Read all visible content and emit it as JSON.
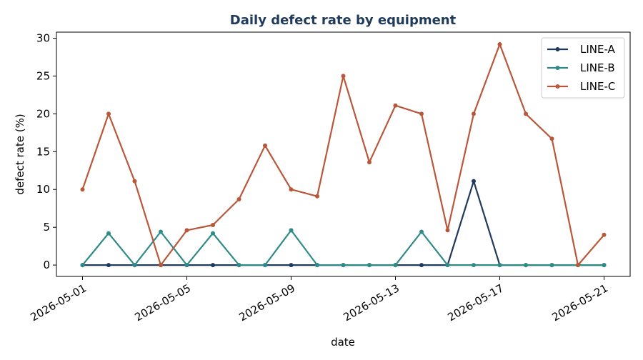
{
  "chart_data": {
    "type": "line",
    "title": "Daily defect rate by equipment",
    "xlabel": "date",
    "ylabel": "defect rate (%)",
    "ylim": [
      -1.5,
      30.8
    ],
    "yticks": [
      0,
      5,
      10,
      15,
      20,
      25,
      30
    ],
    "xlim": [
      "2026-04-30",
      "2026-05-22"
    ],
    "xticks": [
      "2026-05-01",
      "2026-05-05",
      "2026-05-09",
      "2026-05-13",
      "2026-05-17",
      "2026-05-21"
    ],
    "grid": false,
    "legend_position": "top-right",
    "x": [
      "2026-05-01",
      "2026-05-02",
      "2026-05-03",
      "2026-05-04",
      "2026-05-05",
      "2026-05-06",
      "2026-05-07",
      "2026-05-08",
      "2026-05-09",
      "2026-05-10",
      "2026-05-11",
      "2026-05-12",
      "2026-05-13",
      "2026-05-14",
      "2026-05-15",
      "2026-05-16",
      "2026-05-17",
      "2026-05-18",
      "2026-05-19",
      "2026-05-20",
      "2026-05-21"
    ],
    "series": [
      {
        "name": "LINE-A",
        "color": "#1f3a5a",
        "values": [
          0,
          0,
          0,
          0,
          0,
          0,
          0,
          0,
          0,
          0,
          0,
          0,
          0,
          0,
          0,
          11.1,
          0,
          0,
          0,
          0,
          0
        ]
      },
      {
        "name": "LINE-B",
        "color": "#2e8b87",
        "values": [
          0,
          4.2,
          0,
          4.4,
          0,
          4.2,
          0,
          0,
          4.6,
          0,
          0,
          0,
          0,
          4.4,
          0,
          0,
          0,
          0,
          0,
          0,
          0
        ]
      },
      {
        "name": "LINE-C",
        "color": "#b9573a",
        "values": [
          10,
          20,
          11.1,
          0,
          4.6,
          5.3,
          8.7,
          15.8,
          10,
          9.1,
          25,
          13.6,
          21.1,
          20,
          4.6,
          20,
          29.2,
          20,
          16.7,
          0,
          4
        ]
      }
    ]
  }
}
